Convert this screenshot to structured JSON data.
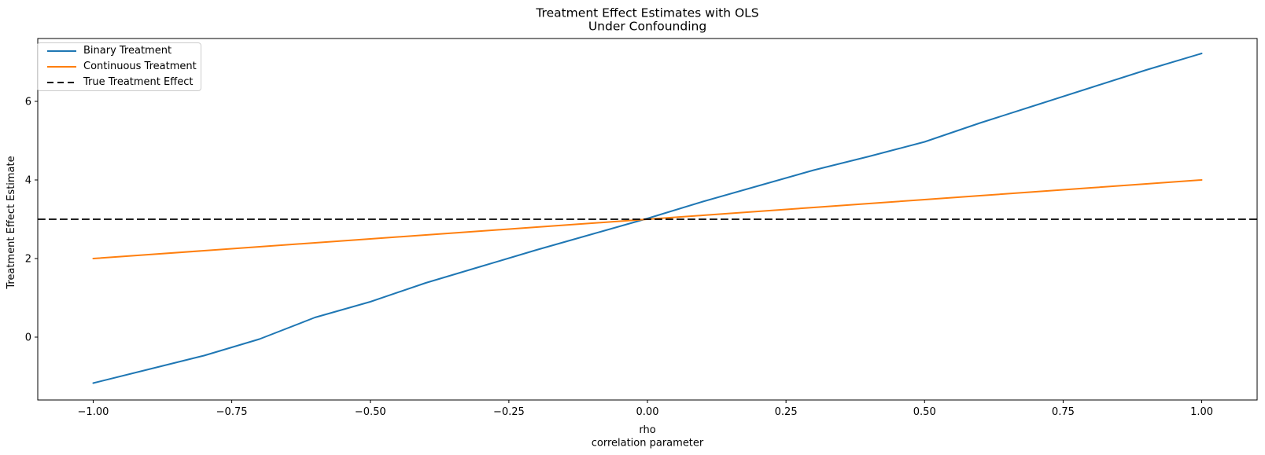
{
  "figure": {
    "title_line1": "Treatment Effect Estimates with OLS",
    "title_line2": "Under Confounding",
    "xlabel_line1": "rho",
    "xlabel_line2": "correlation parameter",
    "ylabel": "Treatment Effect Estimate"
  },
  "chart_data": {
    "type": "line",
    "title": "Treatment Effect Estimates with OLS\nUnder Confounding",
    "xlabel": "rho\ncorrelation parameter",
    "ylabel": "Treatment Effect Estimate",
    "xlim": [
      -1.1,
      1.1
    ],
    "ylim": [
      -1.6,
      7.6
    ],
    "grid": false,
    "legend_position": "upper left",
    "x_ticks": [
      -1.0,
      -0.75,
      -0.5,
      -0.25,
      0.0,
      0.25,
      0.5,
      0.75,
      1.0
    ],
    "x_tick_labels": [
      "−1.00",
      "−0.75",
      "−0.50",
      "−0.25",
      "0.00",
      "0.25",
      "0.50",
      "0.75",
      "1.00"
    ],
    "y_ticks": [
      0,
      2,
      4,
      6
    ],
    "y_tick_labels": [
      "0",
      "2",
      "4",
      "6"
    ],
    "x": [
      -1.0,
      -0.9,
      -0.8,
      -0.7,
      -0.6,
      -0.5,
      -0.4,
      -0.3,
      -0.2,
      -0.1,
      0.0,
      0.1,
      0.2,
      0.3,
      0.4,
      0.5,
      0.6,
      0.7,
      0.8,
      0.9,
      1.0
    ],
    "series": [
      {
        "name": "Binary Treatment",
        "color": "#1f77b4",
        "style": "solid",
        "values": [
          -1.17,
          -0.82,
          -0.47,
          -0.05,
          0.5,
          0.9,
          1.38,
          1.8,
          2.22,
          2.62,
          3.02,
          3.45,
          3.85,
          4.25,
          4.6,
          4.97,
          5.45,
          5.9,
          6.35,
          6.8,
          7.22
        ]
      },
      {
        "name": "Continuous Treatment",
        "color": "#ff7f0e",
        "style": "solid",
        "values": [
          2.0,
          2.1,
          2.2,
          2.3,
          2.4,
          2.5,
          2.6,
          2.7,
          2.8,
          2.9,
          3.0,
          3.1,
          3.2,
          3.3,
          3.4,
          3.5,
          3.6,
          3.7,
          3.8,
          3.9,
          4.0
        ]
      },
      {
        "name": "True Treatment Effect",
        "color": "#000000",
        "style": "dashed",
        "kind": "hline",
        "value": 3.0
      }
    ]
  }
}
